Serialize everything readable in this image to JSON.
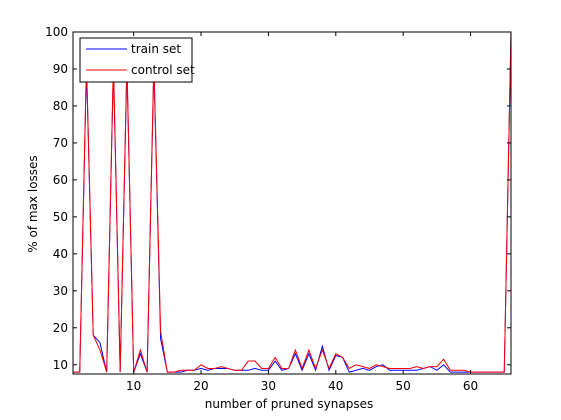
{
  "chart_data": {
    "type": "line",
    "title": "",
    "xlabel": "number of pruned synapses",
    "ylabel": "% of max losses",
    "xlim": [
      1,
      66
    ],
    "ylim": [
      7.5,
      100
    ],
    "xticks": [
      10,
      20,
      30,
      40,
      50,
      60
    ],
    "yticks": [
      10,
      20,
      30,
      40,
      50,
      60,
      70,
      80,
      90,
      100
    ],
    "grid": false,
    "legend_position": "top-left",
    "x": [
      1,
      2,
      3,
      4,
      5,
      6,
      7,
      8,
      9,
      10,
      11,
      12,
      13,
      14,
      15,
      16,
      17,
      18,
      19,
      20,
      21,
      22,
      23,
      24,
      25,
      26,
      27,
      28,
      29,
      30,
      31,
      32,
      33,
      34,
      35,
      36,
      37,
      38,
      39,
      40,
      41,
      42,
      43,
      44,
      45,
      46,
      47,
      48,
      49,
      50,
      51,
      52,
      53,
      54,
      55,
      56,
      57,
      58,
      59,
      60,
      61,
      62,
      63,
      64,
      65,
      66
    ],
    "series": [
      {
        "name": "train set",
        "color": "#0000ff",
        "values": [
          8,
          8,
          91,
          18,
          16,
          8,
          91,
          8,
          91,
          8,
          13,
          8,
          91,
          17,
          8,
          8,
          8,
          8.5,
          8.5,
          9,
          8.5,
          9,
          9,
          9,
          8.5,
          8.5,
          8.5,
          9,
          8.5,
          8.5,
          11,
          8.5,
          9,
          13,
          8.5,
          13,
          8.5,
          15,
          8.5,
          12.5,
          12,
          8,
          8.5,
          9,
          8.5,
          9.5,
          10,
          8.5,
          8.5,
          8.5,
          8.5,
          8.5,
          9,
          9.5,
          8.5,
          10,
          8,
          8,
          8,
          8,
          8,
          8,
          8,
          8,
          8,
          100
        ]
      },
      {
        "name": "control set",
        "color": "#ff0000",
        "values": [
          8,
          8,
          92,
          18,
          14,
          8,
          92,
          8,
          92,
          8,
          14,
          8,
          92,
          19,
          8,
          8,
          8.5,
          8.5,
          8.5,
          10,
          9,
          9,
          9.5,
          9,
          8.5,
          8.5,
          11,
          11,
          9,
          9,
          12,
          9,
          9,
          14,
          9,
          14,
          9,
          14,
          9,
          13,
          12,
          9,
          10,
          9.5,
          9,
          10,
          9.5,
          9,
          9,
          9,
          9,
          9.5,
          9,
          9.5,
          9.5,
          11.5,
          8.5,
          8.5,
          8.5,
          8,
          8,
          8,
          8,
          8,
          8,
          100
        ]
      }
    ]
  }
}
